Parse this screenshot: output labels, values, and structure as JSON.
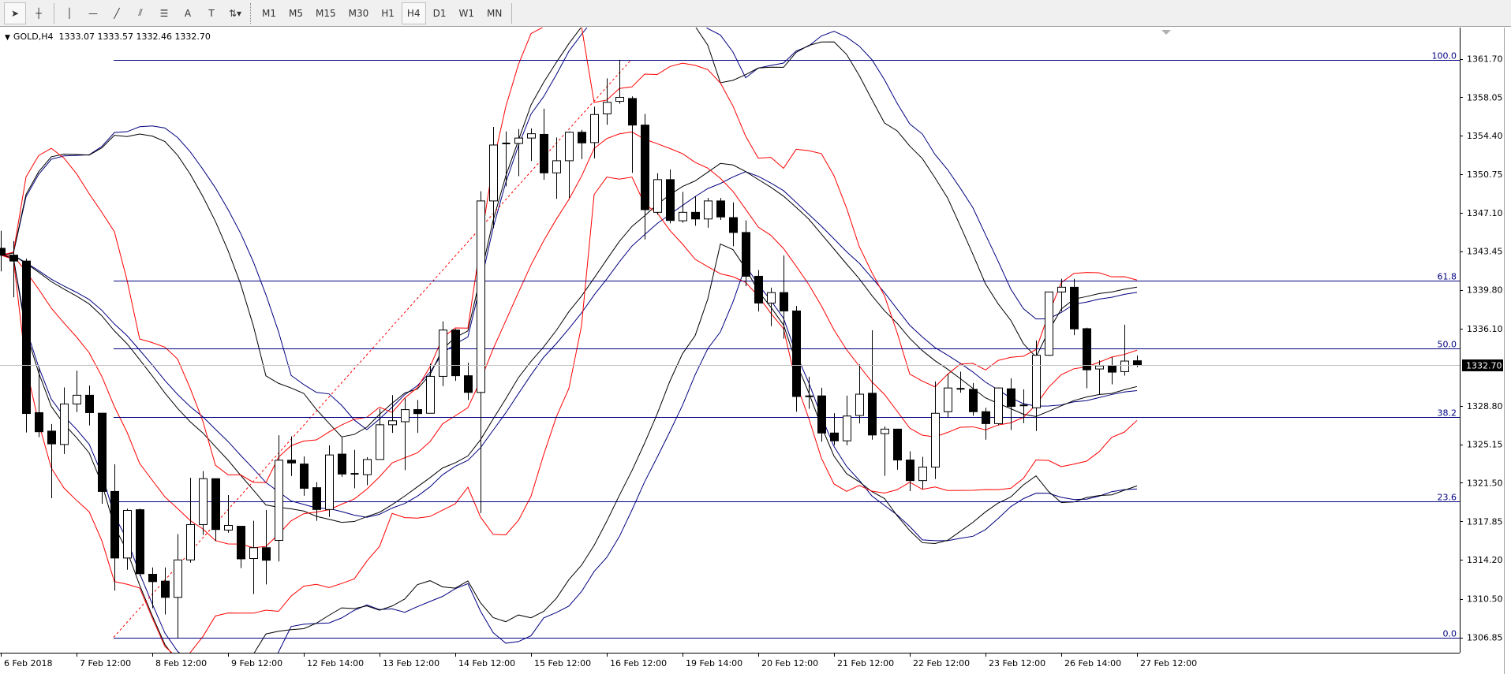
{
  "toolbar": {
    "tools": [
      {
        "name": "cursor-icon",
        "glyph": "➤"
      },
      {
        "name": "crosshair-icon",
        "glyph": "┼"
      },
      {
        "name": "vertical-line-icon",
        "glyph": "│"
      },
      {
        "name": "horizontal-line-icon",
        "glyph": "—"
      },
      {
        "name": "trendline-icon",
        "glyph": "╱"
      },
      {
        "name": "equidistant-channel-icon",
        "glyph": "⫽"
      },
      {
        "name": "fibonacci-icon",
        "glyph": "☰"
      },
      {
        "name": "text-icon",
        "glyph": "A"
      },
      {
        "name": "text-label-icon",
        "glyph": "T"
      },
      {
        "name": "arrows-dropdown-icon",
        "glyph": "⇅▾"
      }
    ],
    "timeframes": [
      "M1",
      "M5",
      "M15",
      "M30",
      "H1",
      "H4",
      "D1",
      "W1",
      "MN"
    ],
    "active_timeframe": "H4"
  },
  "symbol": {
    "title": "GOLD,H4",
    "ohlc": "1333.07 1333.57 1332.46 1332.70"
  },
  "price_axis": {
    "labels": [
      "1361.70",
      "1358.05",
      "1354.40",
      "1350.75",
      "1347.10",
      "1343.45",
      "1339.80",
      "1336.10",
      "1328.80",
      "1325.15",
      "1321.50",
      "1317.85",
      "1314.20",
      "1310.50",
      "1306.85"
    ],
    "current_price": "1332.70"
  },
  "time_axis": {
    "labels": [
      "6 Feb 2018",
      "7 Feb 12:00",
      "8 Feb 12:00",
      "9 Feb 12:00",
      "12 Feb 14:00",
      "13 Feb 12:00",
      "14 Feb 12:00",
      "15 Feb 12:00",
      "16 Feb 12:00",
      "19 Feb 14:00",
      "20 Feb 12:00",
      "21 Feb 12:00",
      "22 Feb 12:00",
      "23 Feb 12:00",
      "26 Feb 14:00",
      "27 Feb 12:00"
    ]
  },
  "colors": {
    "bull_fill": "#ffffff",
    "bear_fill": "#000000",
    "fib_line": "#000080",
    "fib_trend": "#ff0000",
    "band_red": "#ff0000",
    "band_black": "#000000",
    "band_navy": "#000080",
    "current_price_line": "#c0c0c0"
  },
  "chart_data": {
    "type": "candlestick",
    "symbol": "GOLD",
    "timeframe": "H4",
    "ylim": [
      1306.85,
      1361.7
    ],
    "fibonacci": {
      "from": 1306.85,
      "to": 1361.61,
      "levels": [
        {
          "label": "100.0",
          "price": 1361.61
        },
        {
          "label": "61.8",
          "price": 1340.69
        },
        {
          "label": "50.0",
          "price": 1334.23
        },
        {
          "label": "38.2",
          "price": 1327.77
        },
        {
          "label": "23.6",
          "price": 1319.77
        },
        {
          "label": "0.0",
          "price": 1306.85
        }
      ]
    },
    "ohlc": [
      [
        1343.73,
        1345.4,
        1341.54,
        1343.08
      ],
      [
        1343.08,
        1344.42,
        1339.09,
        1342.52
      ],
      [
        1342.52,
        1342.75,
        1326.27,
        1328.07
      ],
      [
        1328.15,
        1332.45,
        1325.83,
        1326.34
      ],
      [
        1326.4,
        1327.07,
        1320.04,
        1325.19
      ],
      [
        1325.13,
        1330.54,
        1324.23,
        1328.97
      ],
      [
        1328.97,
        1332.14,
        1328.2,
        1329.8
      ],
      [
        1329.8,
        1330.72,
        1326.94,
        1328.15
      ],
      [
        1328.1,
        1328.1,
        1319.52,
        1320.68
      ],
      [
        1320.68,
        1323.25,
        1311.28,
        1314.37
      ],
      [
        1314.37,
        1319.06,
        1313.26,
        1318.88
      ],
      [
        1318.95,
        1319.06,
        1312.65,
        1312.88
      ],
      [
        1312.83,
        1313.47,
        1309.61,
        1312.13
      ],
      [
        1312.18,
        1313.47,
        1309.02,
        1310.64
      ],
      [
        1310.64,
        1316.64,
        1306.77,
        1314.19
      ],
      [
        1314.19,
        1321.97,
        1313.93,
        1317.54
      ],
      [
        1317.54,
        1322.61,
        1316.56,
        1321.89
      ],
      [
        1321.89,
        1321.89,
        1315.97,
        1317.07
      ],
      [
        1317.02,
        1320.34,
        1316.77,
        1317.46
      ],
      [
        1317.38,
        1317.38,
        1313.42,
        1314.29
      ],
      [
        1314.32,
        1317.9,
        1310.95,
        1315.35
      ],
      [
        1315.35,
        1318.93,
        1311.87,
        1314.16
      ],
      [
        1316.04,
        1326.01,
        1314.04,
        1323.64
      ],
      [
        1323.64,
        1325.91,
        1322.15,
        1323.38
      ],
      [
        1323.28,
        1324.0,
        1320.27,
        1320.98
      ],
      [
        1321.04,
        1321.56,
        1317.9,
        1318.97
      ],
      [
        1318.97,
        1325.05,
        1318.26,
        1324.14
      ],
      [
        1324.22,
        1325.8,
        1322.07,
        1322.33
      ],
      [
        1322.33,
        1324.62,
        1320.98,
        1322.35
      ],
      [
        1322.27,
        1323.93,
        1321.27,
        1323.71
      ],
      [
        1323.71,
        1328.52,
        1323.71,
        1327.0
      ],
      [
        1327.0,
        1329.81,
        1326.23,
        1327.38
      ],
      [
        1327.29,
        1329.5,
        1322.7,
        1328.44
      ],
      [
        1328.44,
        1329.35,
        1326.23,
        1328.06
      ],
      [
        1328.09,
        1332.79,
        1328.09,
        1331.59
      ],
      [
        1331.59,
        1336.81,
        1330.67,
        1335.98
      ],
      [
        1335.98,
        1336.09,
        1331.16,
        1331.65
      ],
      [
        1331.65,
        1332.88,
        1329.35,
        1330.07
      ],
      [
        1330.07,
        1349.14,
        1318.63,
        1348.22
      ],
      [
        1348.22,
        1355.24,
        1345.64,
        1353.52
      ],
      [
        1353.67,
        1354.81,
        1349.59,
        1353.67
      ],
      [
        1353.67,
        1355.04,
        1350.57,
        1354.18
      ],
      [
        1354.18,
        1355.1,
        1352.0,
        1354.59
      ],
      [
        1354.53,
        1356.96,
        1350.23,
        1350.88
      ],
      [
        1350.88,
        1354.24,
        1348.42,
        1352.03
      ],
      [
        1352.03,
        1354.81,
        1348.5,
        1354.73
      ],
      [
        1354.73,
        1354.96,
        1352.18,
        1353.72
      ],
      [
        1353.75,
        1357.16,
        1352.26,
        1356.41
      ],
      [
        1356.47,
        1359.84,
        1355.44,
        1357.57
      ],
      [
        1357.66,
        1361.61,
        1357.43,
        1358.04
      ],
      [
        1357.93,
        1358.13,
        1350.88,
        1355.41
      ],
      [
        1355.41,
        1356.47,
        1344.57,
        1347.39
      ],
      [
        1347.14,
        1350.85,
        1346.92,
        1350.24
      ],
      [
        1350.24,
        1351.21,
        1346.09,
        1346.37
      ],
      [
        1346.34,
        1349.08,
        1346.15,
        1347.14
      ],
      [
        1347.14,
        1348.66,
        1345.87,
        1346.51
      ],
      [
        1346.51,
        1348.5,
        1345.68,
        1348.22
      ],
      [
        1348.22,
        1348.5,
        1346.42,
        1346.7
      ],
      [
        1346.64,
        1348.08,
        1343.93,
        1345.23
      ],
      [
        1345.23,
        1346.37,
        1340.14,
        1341.08
      ],
      [
        1341.08,
        1341.66,
        1337.73,
        1338.54
      ],
      [
        1338.54,
        1340.0,
        1336.35,
        1339.53
      ],
      [
        1339.53,
        1343.05,
        1335.16,
        1337.79
      ],
      [
        1337.79,
        1338.26,
        1328.24,
        1329.68
      ],
      [
        1329.68,
        1331.56,
        1328.52,
        1329.7
      ],
      [
        1329.74,
        1330.51,
        1325.39,
        1326.22
      ],
      [
        1326.22,
        1328.1,
        1325.06,
        1325.48
      ],
      [
        1325.48,
        1329.76,
        1325.06,
        1327.83
      ],
      [
        1327.88,
        1332.72,
        1327.13,
        1329.9
      ],
      [
        1329.99,
        1335.96,
        1325.59,
        1326.03
      ],
      [
        1326.16,
        1326.84,
        1322.16,
        1326.59
      ],
      [
        1326.59,
        1326.59,
        1322.74,
        1323.66
      ],
      [
        1323.66,
        1324.49,
        1320.71,
        1321.71
      ],
      [
        1321.71,
        1323.96,
        1320.91,
        1322.99
      ],
      [
        1322.99,
        1331.11,
        1321.86,
        1328.09
      ],
      [
        1328.24,
        1331.86,
        1327.71,
        1330.49
      ],
      [
        1330.41,
        1332.03,
        1330.04,
        1330.36
      ],
      [
        1330.36,
        1330.96,
        1327.86,
        1328.24
      ],
      [
        1328.24,
        1328.61,
        1325.59,
        1327.11
      ],
      [
        1327.11,
        1330.54,
        1326.96,
        1330.49
      ],
      [
        1330.41,
        1331.41,
        1326.49,
        1328.74
      ],
      [
        1328.84,
        1330.36,
        1327.16,
        1328.84
      ],
      [
        1328.61,
        1334.99,
        1326.41,
        1333.59
      ],
      [
        1333.59,
        1339.59,
        1333.54,
        1339.59
      ],
      [
        1339.59,
        1340.84,
        1337.74,
        1340.04
      ],
      [
        1340.04,
        1340.84,
        1335.49,
        1336.09
      ],
      [
        1336.11,
        1336.21,
        1330.46,
        1332.21
      ],
      [
        1332.29,
        1333.11,
        1329.86,
        1332.59
      ],
      [
        1332.59,
        1333.41,
        1330.84,
        1331.99
      ],
      [
        1332.04,
        1336.49,
        1331.66,
        1333.04
      ],
      [
        1333.07,
        1333.57,
        1332.46,
        1332.7
      ]
    ]
  }
}
